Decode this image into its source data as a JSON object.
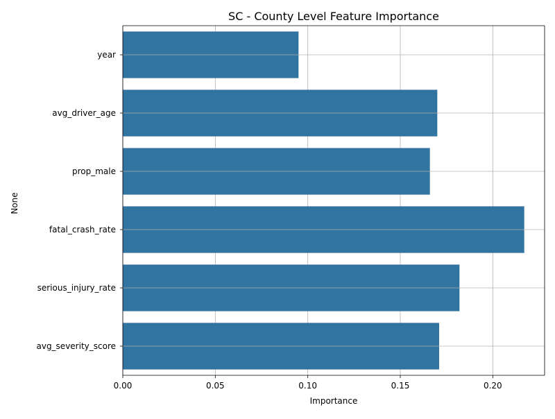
{
  "chart_data": {
    "type": "bar",
    "orientation": "horizontal",
    "title": "SC - County Level Feature Importance",
    "xlabel": "Importance",
    "ylabel": "None",
    "categories": [
      "year",
      "avg_driver_age",
      "prop_male",
      "fatal_crash_rate",
      "serious_injury_rate",
      "avg_severity_score"
    ],
    "values": [
      0.095,
      0.17,
      0.166,
      0.217,
      0.182,
      0.171
    ],
    "xlim": [
      0.0,
      0.228
    ],
    "xticks": [
      0.0,
      0.05,
      0.1,
      0.15,
      0.2
    ],
    "xtick_labels": [
      "0.00",
      "0.05",
      "0.10",
      "0.15",
      "0.20"
    ],
    "grid": true,
    "bar_color": "#3274a1",
    "grid_color": "#b0b0b0"
  }
}
